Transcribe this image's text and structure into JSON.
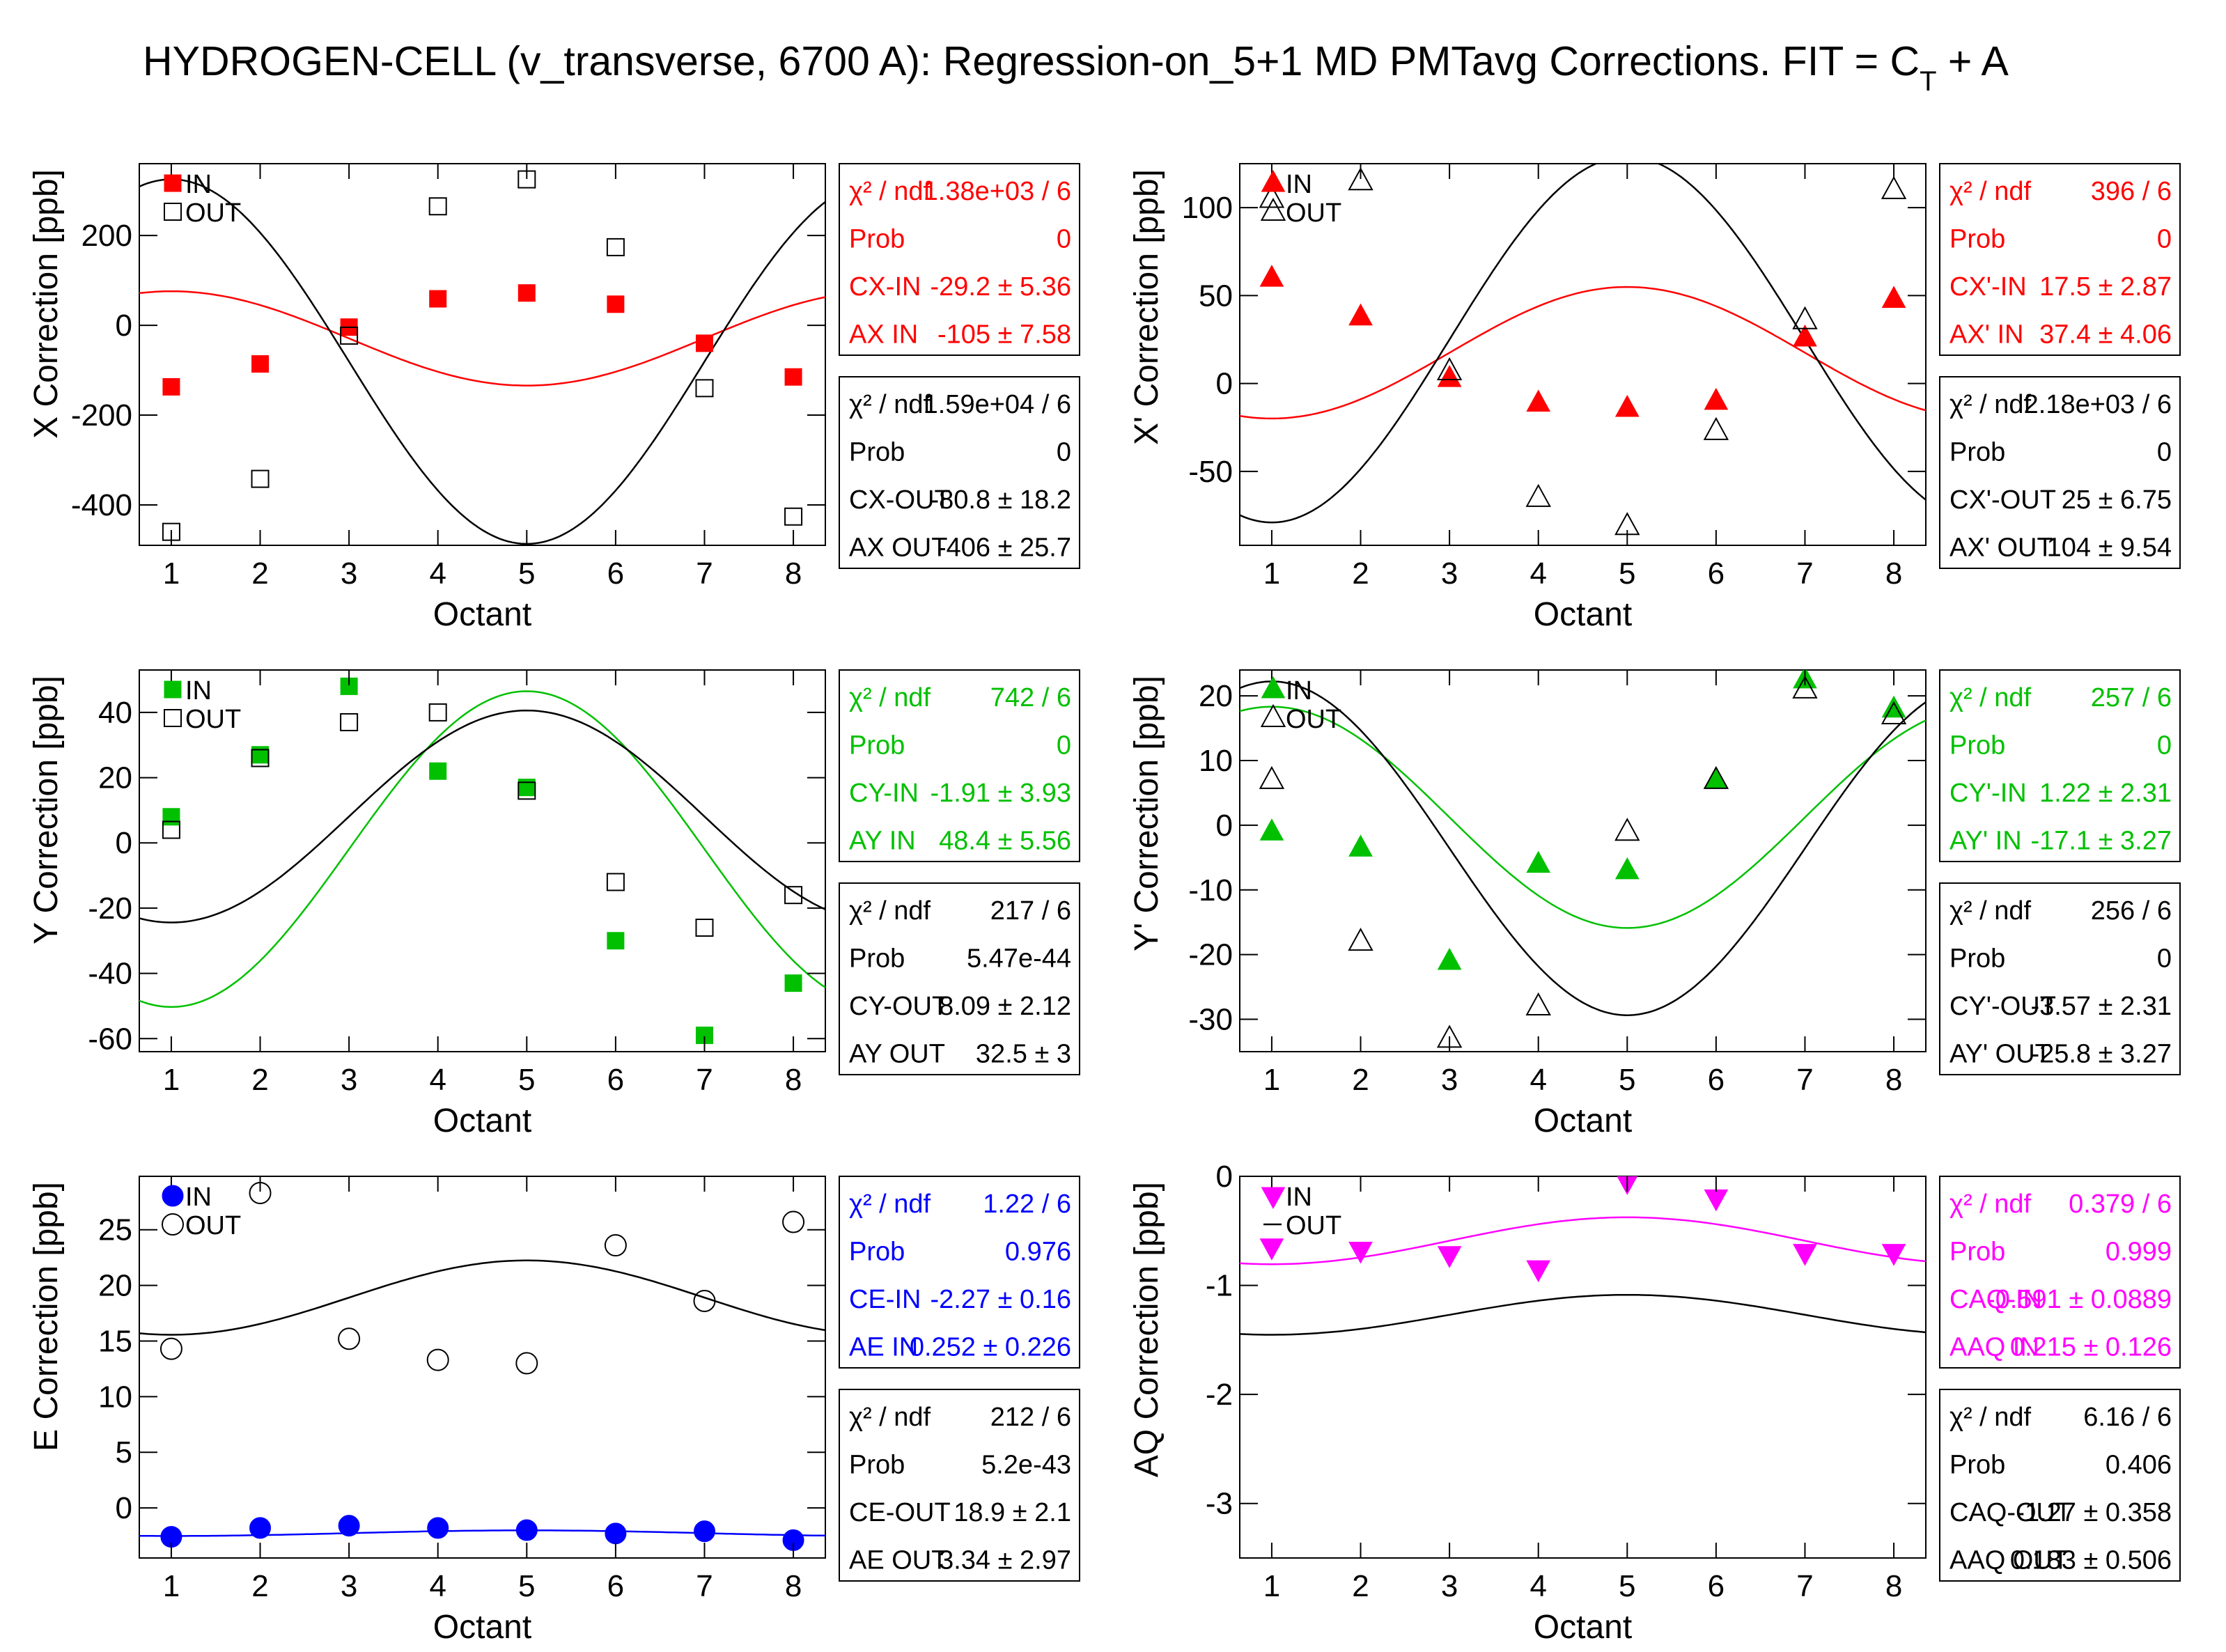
{
  "title": {
    "main": "HYDROGEN-CELL (v_transverse, 6700 A): Regression-on_5+1 MD PMTavg Corrections. FIT = C",
    "sub": "T",
    "tail": " + A"
  },
  "chart_data": [
    {
      "type": "scatter",
      "id": "x",
      "xlabel": "Octant",
      "ylabel": "X Correction [ppb]",
      "xlim": [
        0.64,
        8.36
      ],
      "ylim": [
        -490,
        360
      ],
      "yticks": [
        -400,
        -200,
        0,
        200
      ],
      "xticks": [
        1,
        2,
        3,
        4,
        5,
        6,
        7,
        8
      ],
      "marker": "square",
      "in_color": "#ff0000",
      "legend": [
        "IN",
        "OUT"
      ],
      "series": [
        {
          "name": "IN",
          "x": [
            1,
            2,
            3,
            4,
            5,
            6,
            7,
            8
          ],
          "values": [
            -137,
            -86,
            -4,
            59,
            72,
            47,
            -40,
            -115
          ],
          "fit": {
            "c": -29.2,
            "a": -105
          }
        },
        {
          "name": "OUT",
          "x": [
            1,
            2,
            3,
            4,
            5,
            6,
            7,
            8
          ],
          "values": [
            -460,
            -342,
            -23,
            265,
            325,
            174,
            -140,
            -426
          ],
          "fit": {
            "c": -80.8,
            "a": -406
          }
        }
      ],
      "stats": [
        {
          "color": "#ff0000",
          "rows": [
            {
              "label": "χ² / ndf",
              "value": "1.38e+03 / 6"
            },
            {
              "label": "Prob",
              "value": "0"
            },
            {
              "label": "CX-IN",
              "value": "-29.2 ±  5.36"
            },
            {
              "label": "AX IN",
              "value": "-105 ±  7.58"
            }
          ]
        },
        {
          "color": "#000000",
          "rows": [
            {
              "label": "χ² / ndf",
              "value": "1.59e+04 / 6"
            },
            {
              "label": "Prob",
              "value": "0"
            },
            {
              "label": "CX-OUT",
              "value": "-80.8 ±  18.2"
            },
            {
              "label": "AX OUT",
              "value": "-406 ±  25.7"
            }
          ]
        }
      ]
    },
    {
      "type": "scatter",
      "id": "xp",
      "xlabel": "Octant",
      "ylabel": "X' Correction [ppb]",
      "xlim": [
        0.64,
        8.36
      ],
      "ylim": [
        -92,
        125
      ],
      "yticks": [
        -50,
        0,
        50,
        100
      ],
      "xticks": [
        1,
        2,
        3,
        4,
        5,
        6,
        7,
        8
      ],
      "marker": "triangle-up",
      "in_color": "#ff0000",
      "legend": [
        "IN",
        "OUT"
      ],
      "series": [
        {
          "name": "IN",
          "x": [
            1,
            2,
            3,
            4,
            5,
            6,
            7,
            8
          ],
          "values": [
            60,
            38,
            3,
            -11,
            -14,
            -10,
            26,
            48
          ],
          "fit": {
            "c": 17.5,
            "a": 37.4
          }
        },
        {
          "name": "OUT",
          "x": [
            1,
            2,
            3,
            4,
            5,
            6,
            7,
            8
          ],
          "values": [
            105,
            115,
            7,
            -65,
            -81,
            -27,
            36,
            110
          ],
          "fit": {
            "c": 25,
            "a": 104
          }
        }
      ],
      "stats": [
        {
          "color": "#ff0000",
          "rows": [
            {
              "label": "χ² / ndf",
              "value": "396 / 6"
            },
            {
              "label": "Prob",
              "value": "0"
            },
            {
              "label": "CX'-IN",
              "value": "17.5 ±  2.87"
            },
            {
              "label": "AX' IN",
              "value": "37.4 ±  4.06"
            }
          ]
        },
        {
          "color": "#000000",
          "rows": [
            {
              "label": "χ² / ndf",
              "value": "2.18e+03 / 6"
            },
            {
              "label": "Prob",
              "value": "0"
            },
            {
              "label": "CX'-OUT",
              "value": "25 ±  6.75"
            },
            {
              "label": "AX' OUT",
              "value": "104 ±  9.54"
            }
          ]
        }
      ]
    },
    {
      "type": "scatter",
      "id": "y",
      "xlabel": "Octant",
      "ylabel": "Y Correction [ppb]",
      "xlim": [
        0.64,
        8.36
      ],
      "ylim": [
        -64,
        53
      ],
      "yticks": [
        -60,
        -40,
        -20,
        0,
        20,
        40
      ],
      "xticks": [
        1,
        2,
        3,
        4,
        5,
        6,
        7,
        8
      ],
      "marker": "square",
      "in_color": "#00c000",
      "legend": [
        "IN",
        "OUT"
      ],
      "series": [
        {
          "name": "IN",
          "x": [
            1,
            2,
            3,
            4,
            5,
            6,
            7,
            8
          ],
          "values": [
            8,
            27,
            48,
            22,
            17,
            -30,
            -59,
            -43
          ],
          "fit": {
            "c": -1.91,
            "a": 48.4
          }
        },
        {
          "name": "OUT",
          "x": [
            1,
            2,
            3,
            4,
            5,
            6,
            7,
            8
          ],
          "values": [
            4,
            26,
            37,
            40,
            16,
            -12,
            -26,
            -16
          ],
          "fit": {
            "c": 8.09,
            "a": 32.5
          }
        }
      ],
      "stats": [
        {
          "color": "#00c000",
          "rows": [
            {
              "label": "χ² / ndf",
              "value": "742 / 6"
            },
            {
              "label": "Prob",
              "value": "0"
            },
            {
              "label": "CY-IN",
              "value": "-1.91 ±  3.93"
            },
            {
              "label": "AY IN",
              "value": "48.4 ±  5.56"
            }
          ]
        },
        {
          "color": "#000000",
          "rows": [
            {
              "label": "χ² / ndf",
              "value": "217 / 6"
            },
            {
              "label": "Prob",
              "value": "5.47e-44"
            },
            {
              "label": "CY-OUT",
              "value": "8.09 ±  2.12"
            },
            {
              "label": "AY OUT",
              "value": "32.5 ±  3"
            }
          ]
        }
      ]
    },
    {
      "type": "scatter",
      "id": "yp",
      "xlabel": "Octant",
      "ylabel": "Y' Correction [ppb]",
      "xlim": [
        0.64,
        8.36
      ],
      "ylim": [
        -35,
        24
      ],
      "yticks": [
        -30,
        -20,
        -10,
        0,
        10,
        20
      ],
      "xticks": [
        1,
        2,
        3,
        4,
        5,
        6,
        7,
        8
      ],
      "marker": "triangle-up",
      "in_color": "#00c000",
      "legend": [
        "IN",
        "OUT"
      ],
      "series": [
        {
          "name": "IN",
          "x": [
            1,
            2,
            3,
            4,
            5,
            6,
            7,
            8
          ],
          "values": [
            -1,
            -3.5,
            -21,
            -6,
            -7,
            7,
            22.5,
            18
          ],
          "fit": {
            "c": 1.22,
            "a": -17.1
          }
        },
        {
          "name": "OUT",
          "x": [
            1,
            2,
            3,
            4,
            5,
            6,
            7,
            8
          ],
          "values": [
            7,
            -18,
            -33,
            -28,
            -1,
            7,
            21,
            17
          ],
          "fit": {
            "c": -3.57,
            "a": -25.8
          }
        }
      ],
      "stats": [
        {
          "color": "#00c000",
          "rows": [
            {
              "label": "χ² / ndf",
              "value": "257 / 6"
            },
            {
              "label": "Prob",
              "value": "0"
            },
            {
              "label": "CY'-IN",
              "value": "1.22 ±  2.31"
            },
            {
              "label": "AY' IN",
              "value": "-17.1 ±  3.27"
            }
          ]
        },
        {
          "color": "#000000",
          "rows": [
            {
              "label": "χ² / ndf",
              "value": "256 / 6"
            },
            {
              "label": "Prob",
              "value": "0"
            },
            {
              "label": "CY'-OUT",
              "value": "-3.57 ±  2.31"
            },
            {
              "label": "AY' OUT",
              "value": "-25.8 ±  3.27"
            }
          ]
        }
      ]
    },
    {
      "type": "scatter",
      "id": "e",
      "xlabel": "Octant",
      "ylabel": "E Correction [ppb]",
      "xlim": [
        0.64,
        8.36
      ],
      "ylim": [
        -4.5,
        29.8
      ],
      "yticks": [
        0,
        5,
        10,
        15,
        20,
        25
      ],
      "xticks": [
        1,
        2,
        3,
        4,
        5,
        6,
        7,
        8
      ],
      "marker": "circle",
      "in_color": "#0000ff",
      "legend": [
        "IN",
        "OUT"
      ],
      "series": [
        {
          "name": "IN",
          "x": [
            1,
            2,
            3,
            4,
            5,
            6,
            7,
            8
          ],
          "values": [
            -2.6,
            -1.8,
            -1.6,
            -1.8,
            -2.0,
            -2.3,
            -2.1,
            -2.9
          ],
          "fit": {
            "c": -2.27,
            "a": 0.252
          }
        },
        {
          "name": "OUT",
          "x": [
            1,
            2,
            3,
            4,
            5,
            6,
            7,
            8
          ],
          "values": [
            14.3,
            28.3,
            15.2,
            13.3,
            13.0,
            23.6,
            18.6,
            25.7
          ],
          "fit": {
            "c": 18.9,
            "a": 3.34
          }
        }
      ],
      "stats": [
        {
          "color": "#0000ff",
          "rows": [
            {
              "label": "χ² / ndf",
              "value": "1.22 / 6"
            },
            {
              "label": "Prob",
              "value": "0.976"
            },
            {
              "label": "CE-IN",
              "value": "-2.27 ±  0.16"
            },
            {
              "label": "AE IN",
              "value": "0.252 ± 0.226"
            }
          ]
        },
        {
          "color": "#000000",
          "rows": [
            {
              "label": "χ² / ndf",
              "value": "212 / 6"
            },
            {
              "label": "Prob",
              "value": "5.2e-43"
            },
            {
              "label": "CE-OUT",
              "value": "18.9 ±  2.1"
            },
            {
              "label": "AE OUT",
              "value": "3.34 ±  2.97"
            }
          ]
        }
      ]
    },
    {
      "type": "scatter",
      "id": "aq",
      "xlabel": "Octant",
      "ylabel": "AQ Correction [ppb]",
      "xlim": [
        0.64,
        8.36
      ],
      "ylim": [
        -3.5,
        0.0
      ],
      "yticks": [
        -3,
        -2,
        -1,
        0
      ],
      "xticks": [
        1,
        2,
        3,
        4,
        5,
        6,
        7,
        8
      ],
      "marker": "triangle-down",
      "in_color": "#ff00ff",
      "legend": [
        "IN",
        "OUT"
      ],
      "series": [
        {
          "name": "IN",
          "x": [
            1,
            2,
            3,
            4,
            5,
            6,
            7,
            8
          ],
          "values": [
            -0.65,
            -0.68,
            -0.72,
            -0.85,
            -0.05,
            -0.2,
            -0.7,
            -0.7
          ],
          "fit": {
            "c": -0.591,
            "a": 0.215
          }
        },
        {
          "name": "OUT",
          "x": [],
          "values": [],
          "fit": {
            "c": -1.27,
            "a": 0.183
          }
        }
      ],
      "stats": [
        {
          "color": "#ff00ff",
          "rows": [
            {
              "label": "χ² / ndf",
              "value": "0.379 / 6"
            },
            {
              "label": "Prob",
              "value": "0.999"
            },
            {
              "label": "CAQ-IN",
              "value": "-0.591 ± 0.0889"
            },
            {
              "label": "AAQ IN",
              "value": "0.215 ± 0.126"
            }
          ]
        },
        {
          "color": "#000000",
          "rows": [
            {
              "label": "χ² / ndf",
              "value": "6.16 / 6"
            },
            {
              "label": "Prob",
              "value": "0.406"
            },
            {
              "label": "CAQ-OUT",
              "value": "-1.27 ± 0.358"
            },
            {
              "label": "AAQ OUT",
              "value": "0.183 ± 0.506"
            }
          ]
        }
      ]
    }
  ]
}
